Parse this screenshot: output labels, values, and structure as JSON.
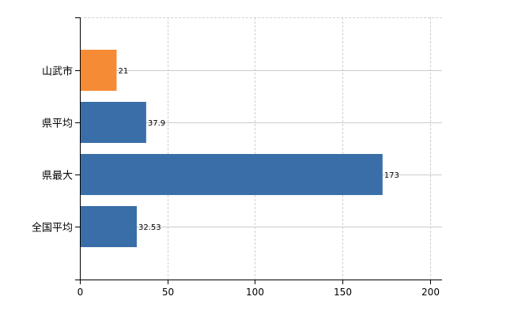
{
  "chart_data": {
    "type": "bar",
    "orientation": "horizontal",
    "categories": [
      "山武市",
      "県平均",
      "県最大",
      "全国平均"
    ],
    "values": [
      21,
      37.9,
      173,
      32.53
    ],
    "data_labels": [
      "21",
      "37.9",
      "173",
      "32.53"
    ],
    "bar_colors": [
      "#f58b35",
      "#3a6ea8",
      "#3a6ea8",
      "#3a6ea8"
    ],
    "xlim": [
      0,
      207
    ],
    "xticks": [
      0,
      50,
      100,
      150,
      200
    ],
    "xtick_labels": [
      "0",
      "50",
      "100",
      "150",
      "200"
    ],
    "grid": true,
    "title": "",
    "xlabel": "",
    "ylabel": ""
  }
}
